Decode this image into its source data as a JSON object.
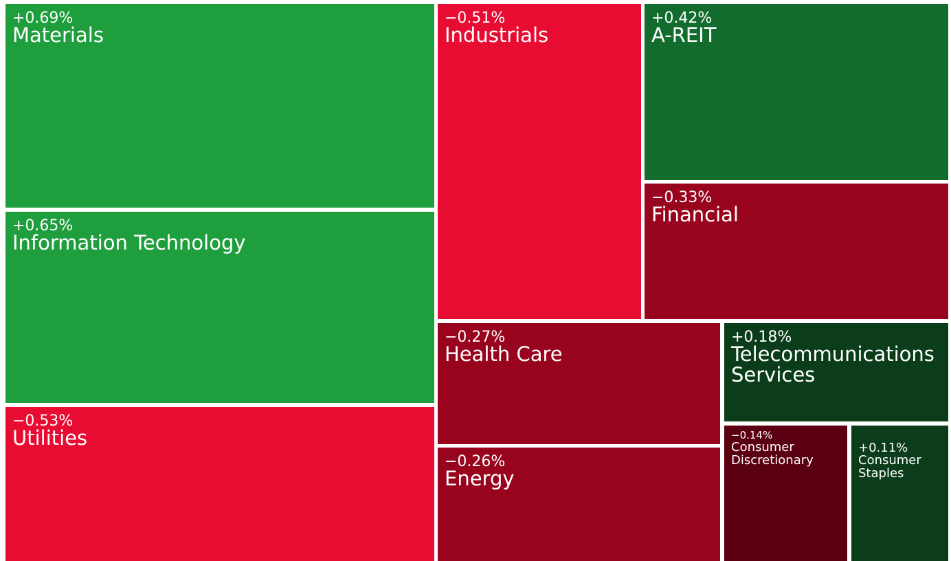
{
  "chart_data": {
    "type": "treemap",
    "colors": {
      "strong_positive": "#1f9e3d",
      "positive": "#116c2d",
      "mild_positive": "#0b3d1a",
      "strong_negative": "#e80c33",
      "negative": "#98041e",
      "mild_negative": "#5a0012"
    },
    "sectors": [
      {
        "name": "Materials",
        "change": "+0.69%",
        "value": 0.69
      },
      {
        "name": "Information Technology",
        "change": "+0.65%",
        "value": 0.65
      },
      {
        "name": "Utilities",
        "change": "−0.53%",
        "value": -0.53
      },
      {
        "name": "Industrials",
        "change": "−0.51%",
        "value": -0.51
      },
      {
        "name": "A-REIT",
        "change": "+0.42%",
        "value": 0.42
      },
      {
        "name": "Financial",
        "change": "−0.33%",
        "value": -0.33
      },
      {
        "name": "Health Care",
        "change": "−0.27%",
        "value": -0.27
      },
      {
        "name": "Telecommunications Services",
        "change": "+0.18%",
        "value": 0.18
      },
      {
        "name": "Energy",
        "change": "−0.26%",
        "value": -0.26
      },
      {
        "name": "Consumer Discretionary",
        "change": "−0.14%",
        "value": -0.14
      },
      {
        "name": "Consumer Staples",
        "change": "+0.11%",
        "value": 0.11
      }
    ]
  }
}
